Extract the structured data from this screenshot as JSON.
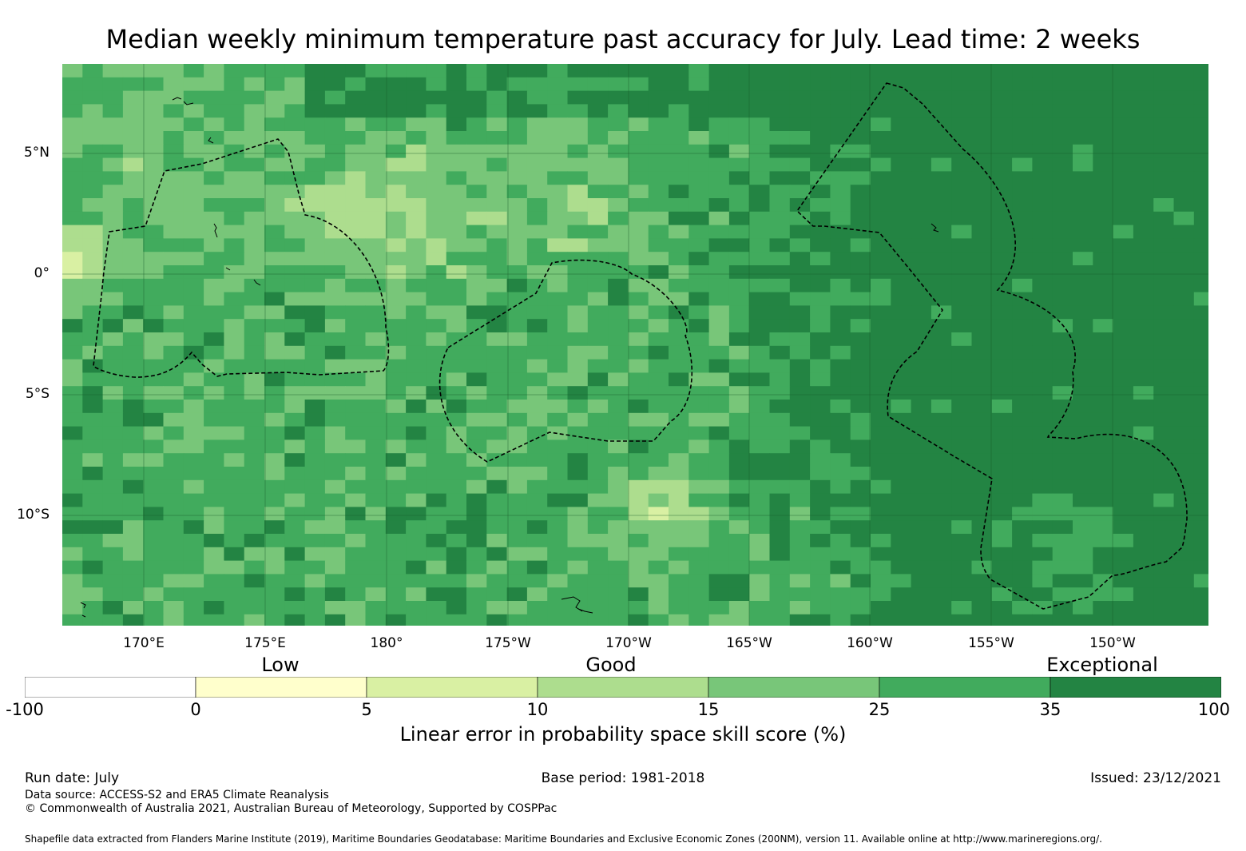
{
  "title": "Median weekly minimum temperature past accuracy for July. Lead time: 2 weeks",
  "map": {
    "lat_labels": [
      "5°N",
      "0°",
      "5°S",
      "10°S"
    ],
    "lon_labels": [
      "170°E",
      "175°E",
      "180°",
      "175°W",
      "170°W",
      "165°W",
      "160°W",
      "155°W",
      "150°W"
    ],
    "palette": [
      "#ffffff",
      "#ffffcc",
      "#d9f0a3",
      "#addd8e",
      "#78c679",
      "#41ab5d",
      "#238443"
    ],
    "grid_color": "#1a5c2a",
    "boundary_style": "dashed black"
  },
  "legend": {
    "categories": [
      "Low",
      "Good",
      "Exceptional"
    ],
    "ticks": [
      "-100",
      "0",
      "5",
      "10",
      "15",
      "25",
      "35",
      "100"
    ],
    "colors": [
      "#ffffff",
      "#ffffcc",
      "#d9f0a3",
      "#addd8e",
      "#78c679",
      "#41ab5d",
      "#238443"
    ],
    "caption": "Linear error in probability space skill score (%)"
  },
  "footer": {
    "run_date": "Run date: July",
    "base_period": "Base period: 1981-2018",
    "issued": "Issued: 23/12/2021",
    "data_source": "Data source: ACCESS-S2 and ERA5 Climate Reanalysis",
    "copyright": "© Commonwealth of Australia 2021, Australian Bureau of Meteorology, Supported by COSPPac",
    "shapefile": "Shapefile data extracted from Flanders Marine Institute (2019), Maritime Boundaries Geodatabase: Maritime Boundaries and Exclusive Economic Zones (200NM), version 11. Available online at http://www.marineregions.org/."
  }
}
